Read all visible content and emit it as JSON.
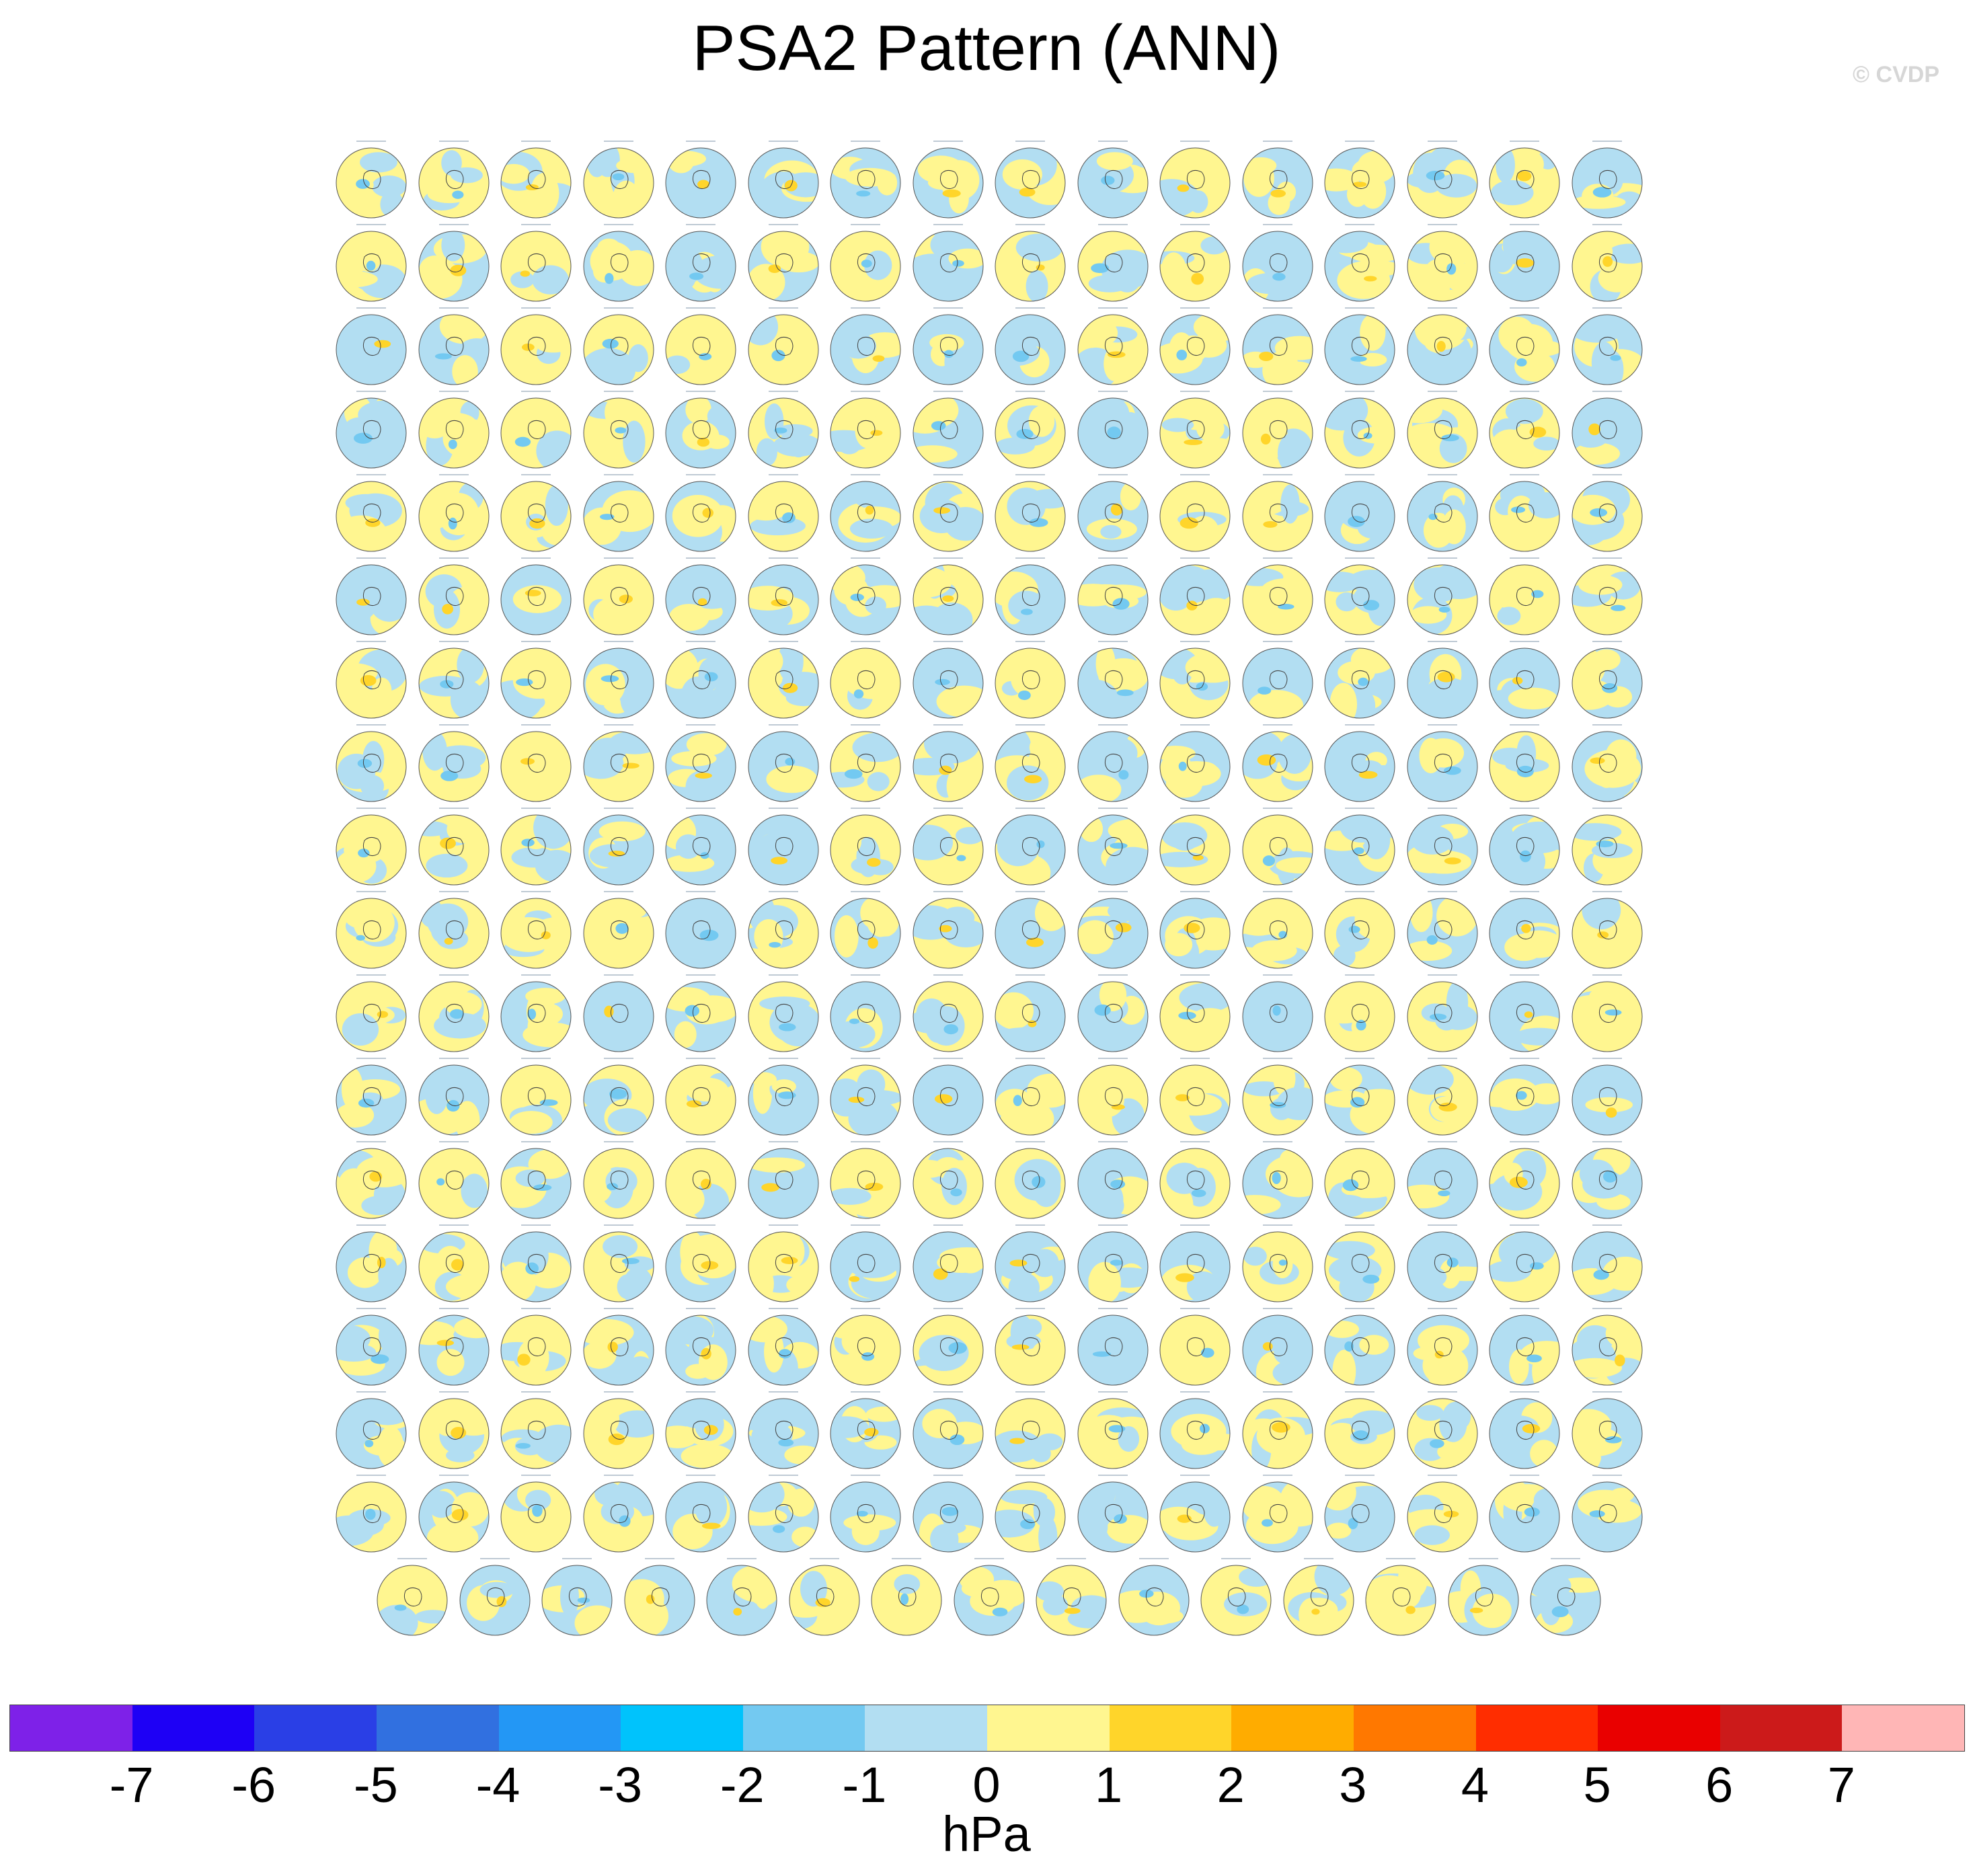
{
  "title": "PSA2 Pattern (ANN)",
  "watermark": "© CVDP",
  "grid": {
    "rows_full": 17,
    "columns": 16,
    "last_row_count": 15,
    "panel_type": "southern-hemisphere polar map of PSA2 sea-level-pressure pattern"
  },
  "colorbar": {
    "colors": [
      "#7e21e8",
      "#1e00f5",
      "#2a3fe6",
      "#3170e0",
      "#2397f5",
      "#00c3fc",
      "#73c9f1",
      "#b2def2",
      "#fff690",
      "#ffd52a",
      "#ffac00",
      "#ff7800",
      "#ff2d00",
      "#e90000",
      "#cc1a1a",
      "#ffb6b6"
    ],
    "ticks": [
      "-7",
      "-6",
      "-5",
      "-4",
      "-3",
      "-2",
      "-1",
      "0",
      "1",
      "2",
      "3",
      "4",
      "5",
      "6",
      "7"
    ],
    "units": "hPa"
  }
}
